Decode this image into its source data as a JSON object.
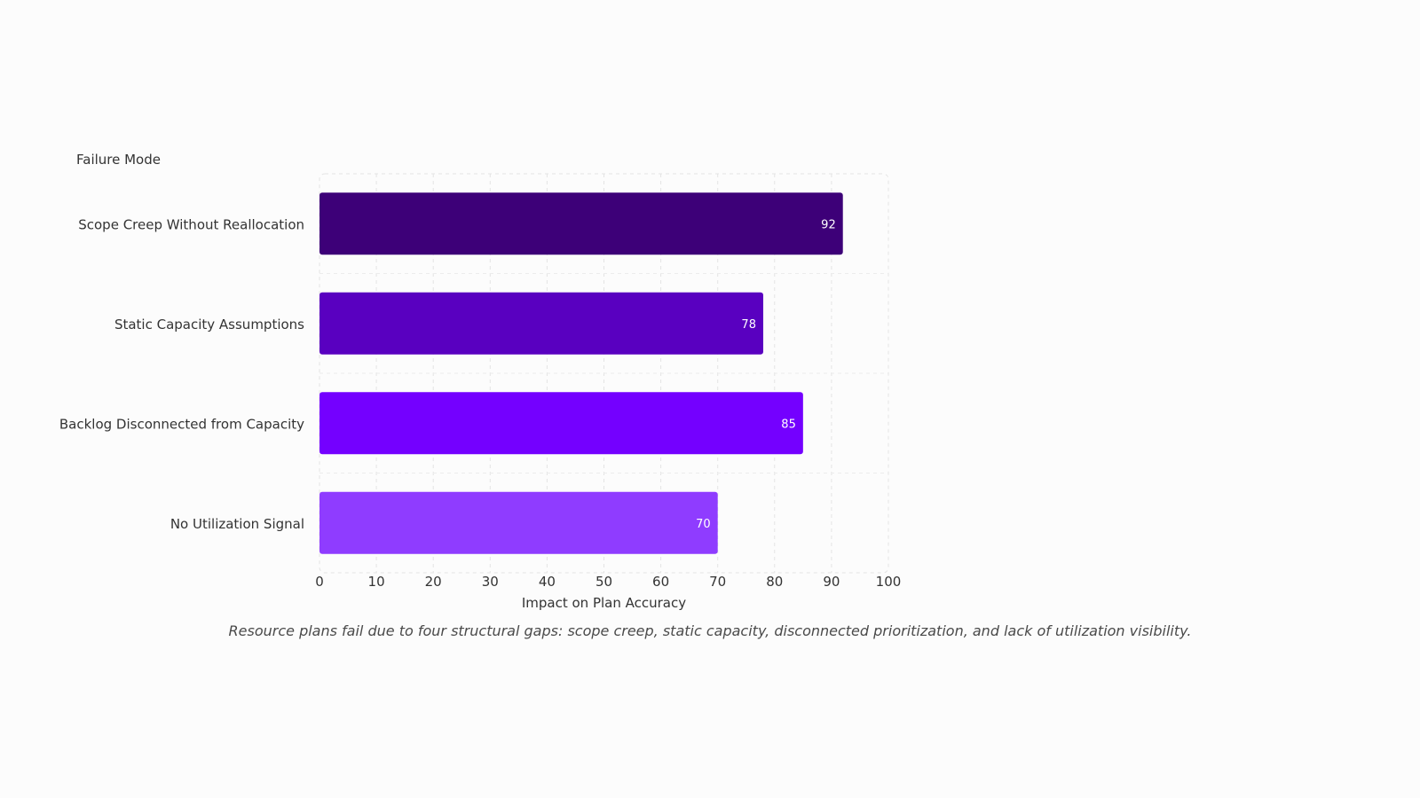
{
  "chart_data": {
    "type": "bar",
    "orientation": "horizontal",
    "categories": [
      "Scope Creep Without Reallocation",
      "Static Capacity Assumptions",
      "Backlog Disconnected from Capacity",
      "No Utilization Signal"
    ],
    "values": [
      92,
      78,
      85,
      70
    ],
    "colors": [
      "#3d0078",
      "#5900c0",
      "#7400ff",
      "#8f3cff"
    ],
    "ylabel": "Failure Mode",
    "xlabel": "Impact on Plan Accuracy",
    "xlim": [
      0,
      100
    ],
    "xticks": [
      0,
      10,
      20,
      30,
      40,
      50,
      60,
      70,
      80,
      90,
      100
    ],
    "grid": true,
    "data_labels": true
  },
  "caption": "Resource plans fail due to four structural gaps: scope creep, static capacity, disconnected prioritization, and lack of utilization visibility."
}
